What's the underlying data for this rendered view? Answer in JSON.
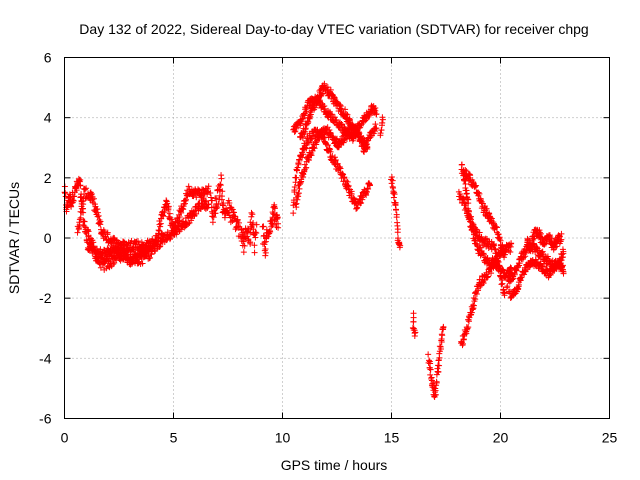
{
  "chart_data": {
    "type": "scatter",
    "title": "Day 132 of 2022, Sidereal Day-to-day VTEC variation (SDTVAR) for receiver chpg",
    "xlabel": "GPS time / hours",
    "ylabel": "SDTVAR / TECUs",
    "xlim": [
      0,
      25
    ],
    "ylim": [
      -6,
      6
    ],
    "xticks": [
      0,
      5,
      10,
      15,
      20,
      25
    ],
    "yticks": [
      -6,
      -4,
      -2,
      0,
      2,
      4,
      6
    ],
    "grid": true,
    "marker": "+",
    "color": "#ff0000",
    "series": [
      {
        "name": "SDTVAR",
        "segments": [
          {
            "points": [
              [
                0.0,
                1.6
              ],
              [
                0.1,
                0.9
              ],
              [
                0.2,
                1.4
              ],
              [
                0.3,
                1.2
              ],
              [
                0.5,
                1.6
              ],
              [
                0.7,
                1.9
              ],
              [
                0.8,
                1.0
              ],
              [
                0.9,
                0.4
              ],
              [
                1.1,
                0.1
              ],
              [
                1.3,
                -0.3
              ],
              [
                1.5,
                -0.7
              ],
              [
                1.8,
                -0.9
              ],
              [
                2.1,
                -0.8
              ],
              [
                2.4,
                -0.6
              ],
              [
                2.8,
                -0.5
              ],
              [
                3.1,
                -0.6
              ],
              [
                3.5,
                -0.7
              ],
              [
                3.9,
                -0.5
              ],
              [
                4.2,
                -0.2
              ],
              [
                4.5,
                0.0
              ]
            ],
            "spread": 0.2
          },
          {
            "points": [
              [
                0.6,
                0.2
              ],
              [
                0.9,
                1.5
              ],
              [
                1.2,
                1.4
              ],
              [
                1.5,
                0.8
              ],
              [
                1.7,
                0.2
              ],
              [
                2.0,
                0.0
              ],
              [
                2.4,
                -0.2
              ],
              [
                2.8,
                -0.3
              ],
              [
                3.2,
                -0.2
              ],
              [
                3.6,
                -0.3
              ],
              [
                4.0,
                -0.2
              ],
              [
                4.3,
                0.0
              ]
            ],
            "spread": 0.18
          },
          {
            "points": [
              [
                1.0,
                -0.2
              ],
              [
                1.4,
                -0.5
              ],
              [
                1.9,
                -0.5
              ],
              [
                2.3,
                -0.4
              ],
              [
                2.7,
                -0.6
              ],
              [
                3.1,
                -0.8
              ],
              [
                3.5,
                -0.5
              ],
              [
                3.9,
                -0.3
              ]
            ],
            "spread": 0.15
          },
          {
            "points": [
              [
                4.3,
                0.3
              ],
              [
                4.5,
                0.8
              ],
              [
                4.7,
                1.2
              ],
              [
                4.9,
                0.5
              ],
              [
                5.1,
                0.4
              ],
              [
                5.4,
                1.0
              ],
              [
                5.7,
                1.6
              ],
              [
                6.0,
                1.5
              ],
              [
                6.3,
                1.5
              ],
              [
                6.6,
                1.6
              ]
            ],
            "spread": 0.15
          },
          {
            "points": [
              [
                4.4,
                -0.1
              ],
              [
                4.8,
                0.1
              ],
              [
                5.2,
                0.3
              ],
              [
                5.5,
                0.5
              ],
              [
                5.8,
                0.7
              ],
              [
                6.1,
                1.0
              ],
              [
                6.4,
                1.2
              ],
              [
                6.6,
                1.0
              ]
            ],
            "spread": 0.15
          },
          {
            "points": [
              [
                6.7,
                1.4
              ],
              [
                6.8,
                0.7
              ],
              [
                7.0,
                1.3
              ],
              [
                7.2,
                1.8
              ],
              [
                7.3,
                0.8
              ],
              [
                7.5,
                1.0
              ],
              [
                7.7,
                0.7
              ],
              [
                7.9,
                0.5
              ],
              [
                8.0,
                0.3
              ]
            ],
            "spread": 0.3
          },
          {
            "points": [
              [
                8.1,
                0.1
              ],
              [
                8.2,
                -0.3
              ],
              [
                8.3,
                0.3
              ],
              [
                8.5,
                0.0
              ],
              [
                8.6,
                0.7
              ],
              [
                8.7,
                -0.2
              ],
              [
                8.8,
                0.3
              ]
            ],
            "spread": 0.35
          },
          {
            "points": [
              [
                9.1,
                0.2
              ],
              [
                9.2,
                -0.5
              ],
              [
                9.3,
                0.2
              ],
              [
                9.5,
                0.6
              ],
              [
                9.6,
                0.9
              ],
              [
                9.7,
                0.7
              ],
              [
                9.8,
                0.3
              ]
            ],
            "spread": 0.3
          },
          {
            "points": [
              [
                10.5,
                0.9
              ],
              [
                10.6,
                2.0
              ],
              [
                10.8,
                2.6
              ],
              [
                11.0,
                3.0
              ],
              [
                11.3,
                3.4
              ],
              [
                11.6,
                3.5
              ],
              [
                11.9,
                3.3
              ],
              [
                12.2,
                2.8
              ],
              [
                12.5,
                2.4
              ],
              [
                12.8,
                2.0
              ],
              [
                13.1,
                1.5
              ],
              [
                13.4,
                1.0
              ],
              [
                13.7,
                1.4
              ],
              [
                14.0,
                1.8
              ]
            ],
            "spread": 0.15
          },
          {
            "points": [
              [
                10.6,
                1.0
              ],
              [
                10.8,
                1.9
              ],
              [
                11.1,
                2.5
              ],
              [
                11.4,
                3.0
              ],
              [
                11.7,
                3.4
              ],
              [
                12.0,
                3.6
              ],
              [
                12.3,
                3.3
              ],
              [
                12.6,
                3.1
              ],
              [
                12.9,
                3.4
              ],
              [
                13.2,
                3.7
              ],
              [
                13.5,
                3.3
              ],
              [
                13.8,
                2.9
              ],
              [
                14.0,
                3.4
              ],
              [
                14.3,
                3.8
              ]
            ],
            "spread": 0.15
          },
          {
            "points": [
              [
                10.8,
                3.3
              ],
              [
                11.1,
                3.7
              ],
              [
                11.4,
                4.3
              ],
              [
                11.7,
                4.8
              ],
              [
                11.9,
                5.0
              ],
              [
                12.2,
                4.8
              ],
              [
                12.5,
                4.4
              ],
              [
                12.8,
                4.2
              ],
              [
                13.1,
                3.8
              ],
              [
                13.4,
                3.5
              ],
              [
                13.7,
                3.2
              ],
              [
                13.9,
                3.1
              ]
            ],
            "spread": 0.15
          },
          {
            "points": [
              [
                10.5,
                3.6
              ],
              [
                10.8,
                3.8
              ],
              [
                11.2,
                4.5
              ],
              [
                11.6,
                4.6
              ],
              [
                12.0,
                4.2
              ],
              [
                12.4,
                3.9
              ],
              [
                12.8,
                3.6
              ],
              [
                13.2,
                3.3
              ],
              [
                13.5,
                3.7
              ],
              [
                13.8,
                4.0
              ],
              [
                14.1,
                4.3
              ],
              [
                14.3,
                4.2
              ]
            ],
            "spread": 0.12
          },
          {
            "points": [
              [
                15.0,
                2.0
              ],
              [
                15.1,
                1.5
              ],
              [
                15.2,
                1.0
              ],
              [
                15.3,
                0.0
              ],
              [
                15.4,
                -0.4
              ]
            ],
            "spread": 0.15
          },
          {
            "points": [
              [
                14.6,
                4.0
              ],
              [
                14.5,
                3.4
              ]
            ],
            "spread": 0.05
          },
          {
            "points": [
              [
                16.0,
                -2.5
              ],
              [
                16.0,
                -3.0
              ],
              [
                16.1,
                -3.2
              ]
            ],
            "spread": 0.1
          },
          {
            "points": [
              [
                16.7,
                -3.9
              ],
              [
                16.8,
                -4.5
              ],
              [
                16.9,
                -5.0
              ],
              [
                17.0,
                -5.2
              ],
              [
                17.1,
                -4.5
              ],
              [
                17.2,
                -4.0
              ],
              [
                17.3,
                -3.3
              ],
              [
                17.4,
                -2.9
              ]
            ],
            "spread": 0.2
          },
          {
            "points": [
              [
                18.2,
                -3.6
              ],
              [
                18.4,
                -3.1
              ],
              [
                18.6,
                -2.6
              ],
              [
                18.8,
                -2.1
              ],
              [
                19.0,
                -1.5
              ],
              [
                19.3,
                -1.3
              ],
              [
                19.6,
                -1.0
              ],
              [
                19.9,
                -0.6
              ],
              [
                20.2,
                -0.4
              ],
              [
                20.5,
                -0.3
              ]
            ],
            "spread": 0.15
          },
          {
            "points": [
              [
                18.2,
                2.4
              ],
              [
                18.4,
                1.8
              ],
              [
                18.5,
                1.2
              ],
              [
                18.6,
                0.6
              ],
              [
                18.8,
                0.0
              ],
              [
                19.0,
                -0.4
              ],
              [
                19.3,
                -0.7
              ],
              [
                19.6,
                -0.8
              ],
              [
                19.9,
                -0.9
              ],
              [
                20.2,
                -1.2
              ],
              [
                20.5,
                -1.1
              ]
            ],
            "spread": 0.15
          },
          {
            "points": [
              [
                18.3,
                2.2
              ],
              [
                18.6,
                2.0
              ],
              [
                18.9,
                1.6
              ],
              [
                19.2,
                1.0
              ],
              [
                19.5,
                0.7
              ],
              [
                19.8,
                0.3
              ],
              [
                20.0,
                -0.2
              ],
              [
                20.2,
                -0.6
              ]
            ],
            "spread": 0.15
          },
          {
            "points": [
              [
                18.1,
                1.5
              ],
              [
                18.4,
                1.0
              ],
              [
                18.8,
                0.3
              ],
              [
                19.2,
                -0.1
              ],
              [
                19.7,
                -0.3
              ],
              [
                20.0,
                -1.2
              ],
              [
                20.2,
                -2.0
              ]
            ],
            "spread": 0.15
          },
          {
            "points": [
              [
                20.3,
                -1.5
              ],
              [
                20.6,
                -1.2
              ],
              [
                20.9,
                -0.7
              ],
              [
                21.2,
                -0.4
              ],
              [
                21.5,
                -0.3
              ],
              [
                21.8,
                -0.5
              ],
              [
                22.1,
                -0.7
              ],
              [
                22.4,
                -0.9
              ],
              [
                22.7,
                -0.8
              ],
              [
                22.9,
                -0.5
              ]
            ],
            "spread": 0.15
          },
          {
            "points": [
              [
                20.4,
                -1.9
              ],
              [
                20.7,
                -1.8
              ],
              [
                21.0,
                -1.2
              ],
              [
                21.3,
                -0.9
              ],
              [
                21.6,
                -0.8
              ],
              [
                21.9,
                -1.0
              ],
              [
                22.2,
                -1.2
              ],
              [
                22.5,
                -1.0
              ],
              [
                22.8,
                -0.9
              ],
              [
                22.9,
                -1.1
              ]
            ],
            "spread": 0.12
          },
          {
            "points": [
              [
                21.2,
                -0.1
              ],
              [
                21.4,
                -0.3
              ],
              [
                21.6,
                0.3
              ],
              [
                21.8,
                0.1
              ],
              [
                22.0,
                -0.2
              ],
              [
                22.2,
                0.1
              ],
              [
                22.4,
                -0.3
              ],
              [
                22.6,
                -0.1
              ],
              [
                22.8,
                0.0
              ]
            ],
            "spread": 0.15
          }
        ]
      }
    ]
  }
}
